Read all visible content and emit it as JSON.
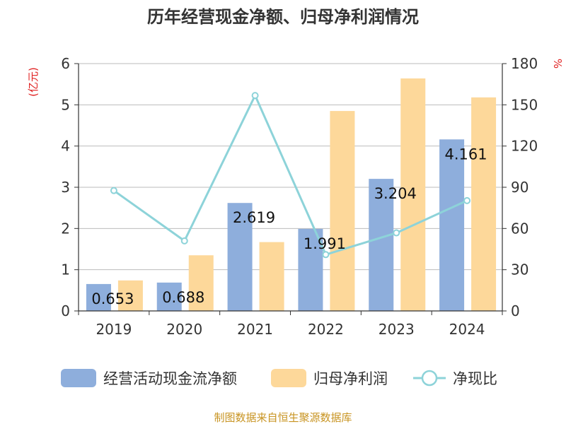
{
  "title": "历年经营现金净额、归母净利润情况",
  "left_unit": "(亿元)",
  "right_unit": "%",
  "source": "制图数据来自恒生聚源数据库",
  "colors": {
    "cash_flow": "#8eaedc",
    "net_profit": "#fdd89a",
    "ratio": "#8dd3d9",
    "unit_red": "#e02020",
    "source_text": "#c89422",
    "grid": "#bbbbbb",
    "axis": "#333333"
  },
  "legend": [
    {
      "label": "经营活动现金流净额",
      "kind": "bar",
      "color": "#8eaedc"
    },
    {
      "label": "归母净利润",
      "kind": "bar",
      "color": "#fdd89a"
    },
    {
      "label": "净现比",
      "kind": "line",
      "color": "#8dd3d9"
    }
  ],
  "chart_data": {
    "type": "bar",
    "title": "历年经营现金净额、归母净利润情况",
    "categories": [
      "2019",
      "2020",
      "2021",
      "2022",
      "2023",
      "2024"
    ],
    "y_left": {
      "unit": "(亿元)",
      "min": 0,
      "max": 6,
      "ticks": [
        0,
        1,
        2,
        3,
        4,
        5,
        6
      ]
    },
    "y_right": {
      "unit": "%",
      "min": 0,
      "max": 180,
      "ticks": [
        0,
        30,
        60,
        90,
        120,
        150,
        180
      ]
    },
    "grid": true,
    "legend_position": "bottom",
    "series": [
      {
        "name": "经营活动现金流净额",
        "type": "bar",
        "axis": "left",
        "values": [
          0.653,
          0.688,
          2.619,
          1.991,
          3.204,
          4.161
        ],
        "labels": [
          "0.653",
          "0.688",
          "2.619",
          "1.991",
          "3.204",
          "4.161"
        ]
      },
      {
        "name": "归母净利润",
        "type": "bar",
        "axis": "left",
        "values": [
          0.74,
          1.35,
          1.67,
          4.85,
          5.64,
          5.18
        ]
      },
      {
        "name": "净现比",
        "type": "line",
        "axis": "right",
        "values": [
          87.6,
          51.0,
          156.8,
          41.0,
          56.8,
          80.3
        ]
      }
    ]
  }
}
